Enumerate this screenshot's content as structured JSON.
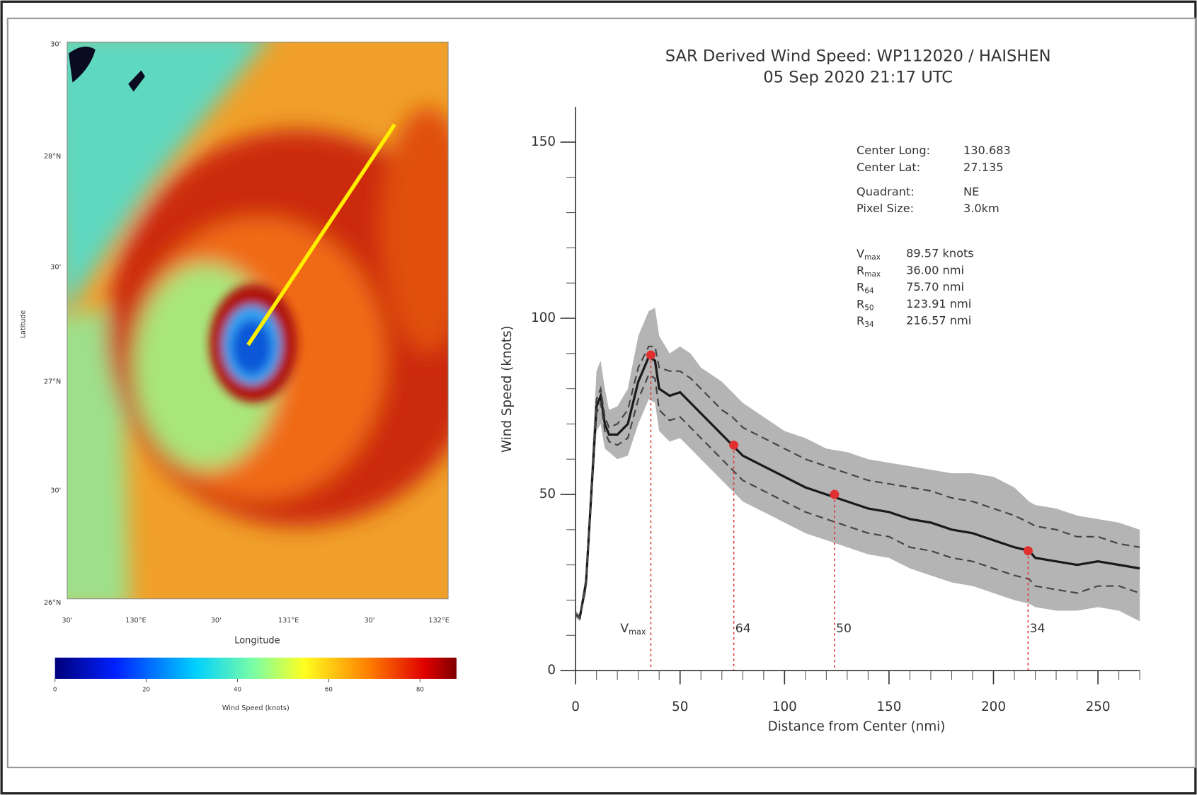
{
  "map": {
    "lat_label": "Latitude",
    "lon_label": "Longitude",
    "lat_ticks": [
      "30'",
      "28°N",
      "30'",
      "27°N",
      "30'",
      "26°N"
    ],
    "lon_ticks": [
      "30'",
      "130°E",
      "30'",
      "131°E",
      "30'",
      "132°E"
    ],
    "colorbar_lim": [
      0,
      88
    ],
    "colorbar_ticks": [
      0,
      20,
      40,
      60,
      80
    ],
    "colorbar_label": "Wind Speed (knots)"
  },
  "chart_data": {
    "type": "line",
    "title": "SAR Derived Wind Speed: WP112020 / HAISHEN",
    "subtitle": "05 Sep 2020 21:17 UTC",
    "x_label": "Distance from Center (nmi)",
    "y_label": "Wind Speed (knots)",
    "xlim": [
      0,
      270
    ],
    "ylim": [
      0,
      160
    ],
    "xticks": [
      0,
      50,
      100,
      150,
      200,
      250
    ],
    "yticks": [
      0,
      50,
      100,
      150
    ],
    "xminorticks": [
      10,
      20,
      30,
      40,
      60,
      70,
      80,
      90,
      110,
      120,
      130,
      140,
      160,
      170,
      180,
      190,
      210,
      220,
      230,
      240,
      260,
      270
    ],
    "yminorticks": [
      10,
      20,
      30,
      40,
      60,
      70,
      80,
      90,
      110,
      120,
      130,
      140
    ],
    "x": [
      0,
      2,
      5,
      8,
      10,
      12,
      14,
      16,
      20,
      25,
      30,
      35,
      38,
      40,
      45,
      50,
      55,
      60,
      65,
      70,
      75,
      80,
      90,
      100,
      110,
      120,
      130,
      140,
      150,
      160,
      170,
      180,
      190,
      200,
      210,
      217,
      220,
      230,
      240,
      250,
      260,
      270
    ],
    "band": {
      "color": "#b4b4b4",
      "high": [
        17,
        16,
        28,
        62,
        85,
        88,
        80,
        74,
        75,
        80,
        95,
        102,
        103,
        95,
        90,
        92,
        90,
        86,
        84,
        82,
        79,
        76,
        72,
        68,
        66,
        63,
        62,
        60,
        59,
        58,
        57,
        56,
        56,
        55,
        52,
        48,
        47,
        46,
        44,
        43,
        42,
        40
      ],
      "low": [
        15,
        14,
        22,
        50,
        68,
        70,
        63,
        62,
        60,
        61,
        70,
        77,
        76,
        68,
        65,
        66,
        63,
        60,
        57,
        54,
        51,
        48,
        45,
        42,
        39,
        37,
        35,
        33,
        32,
        29,
        27,
        25,
        24,
        22,
        20,
        19,
        18,
        17,
        17,
        18,
        17,
        14
      ]
    },
    "series": [
      {
        "color": "#1a1a1a",
        "style": "solid",
        "values": [
          16,
          15,
          25,
          55,
          75,
          78,
          70,
          67,
          67,
          70,
          82,
          89,
          88,
          80,
          78,
          79,
          76,
          73,
          70,
          67,
          64,
          61,
          58,
          55,
          52,
          50,
          48,
          46,
          45,
          43,
          42,
          40,
          39,
          37,
          35,
          34,
          32,
          31,
          30,
          31,
          30,
          29
        ]
      },
      {
        "color": "#444444",
        "style": "dashed",
        "values": [
          16,
          15,
          26,
          57,
          77,
          80,
          72,
          69,
          70,
          74,
          86,
          92,
          92,
          86,
          85,
          85,
          83,
          80,
          77,
          74,
          72,
          69,
          66,
          63,
          60,
          58,
          56,
          54,
          53,
          52,
          51,
          49,
          48,
          46,
          44,
          42,
          41,
          40,
          38,
          38,
          36,
          35
        ]
      },
      {
        "color": "#444444",
        "style": "dashed",
        "values": [
          16,
          15,
          24,
          53,
          73,
          76,
          68,
          65,
          64,
          66,
          77,
          84,
          83,
          74,
          71,
          72,
          69,
          66,
          63,
          60,
          57,
          54,
          51,
          48,
          45,
          43,
          41,
          39,
          38,
          35,
          34,
          32,
          31,
          29,
          27,
          26,
          24,
          23,
          22,
          24,
          24,
          22
        ]
      }
    ],
    "points": {
      "color": "#e03030",
      "x": [
        36,
        75.7,
        123.91,
        216.57
      ],
      "values": [
        89.57,
        64,
        50,
        34
      ],
      "labels": [
        {
          "base": "V",
          "sub": "max"
        },
        {
          "base": "64"
        },
        {
          "base": "50"
        },
        {
          "base": "34"
        }
      ]
    },
    "stats": [
      {
        "label": "Center Long:",
        "value": "130.683"
      },
      {
        "label": "Center Lat:",
        "value": "27.135"
      },
      {
        "label": "Quadrant:",
        "value": "NE"
      },
      {
        "label": "Pixel Size:",
        "value": "3.0km"
      }
    ],
    "radii": [
      {
        "base": "V",
        "sub": "max",
        "value": "89.57 knots"
      },
      {
        "base": "R",
        "sub": "max",
        "value": "36.00 nmi"
      },
      {
        "base": "R",
        "sub": "64",
        "value": "75.70 nmi"
      },
      {
        "base": "R",
        "sub": "50",
        "value": "123.91 nmi"
      },
      {
        "base": "R",
        "sub": "34",
        "value": "216.57 nmi"
      }
    ]
  }
}
